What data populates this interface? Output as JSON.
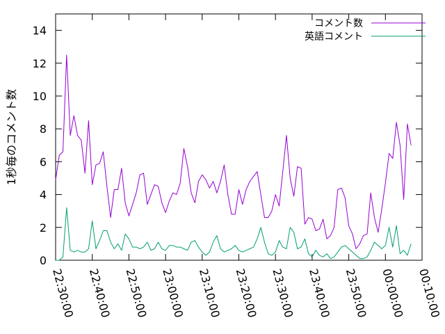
{
  "chart_data": {
    "type": "line",
    "ylabel": "1秒毎のコメント数",
    "ylim": [
      0,
      15
    ],
    "yticks": [
      0,
      2,
      4,
      6,
      8,
      10,
      12,
      14
    ],
    "xlim": [
      "22:30:00",
      "00:10:00"
    ],
    "xticks": [
      "22:30:00",
      "22:40:00",
      "22:50:00",
      "23:00:00",
      "23:10:00",
      "23:20:00",
      "23:30:00",
      "23:40:00",
      "23:50:00",
      "00:00:00",
      "00:10:00"
    ],
    "grid": false,
    "legend_position": "top-right",
    "x_interval_minutes": 1,
    "x_start": "22:30:00",
    "series": [
      {
        "name": "コメント数",
        "color": "#9400d3",
        "values": [
          4.9,
          6.4,
          6.6,
          12.5,
          7.6,
          8.8,
          7.6,
          7.3,
          5.3,
          8.5,
          4.6,
          5.8,
          5.9,
          6.6,
          4.5,
          2.6,
          4.3,
          4.3,
          5.6,
          3.5,
          2.7,
          3.4,
          4.1,
          5.2,
          5.3,
          3.4,
          4.0,
          4.6,
          4.5,
          3.5,
          2.9,
          3.6,
          4.1,
          4.0,
          4.7,
          6.8,
          5.7,
          4.1,
          3.5,
          4.8,
          5.2,
          4.9,
          4.4,
          4.8,
          4.1,
          4.8,
          5.8,
          4.0,
          2.8,
          2.8,
          4.3,
          3.4,
          4.3,
          4.8,
          5.1,
          5.4,
          4.0,
          2.6,
          2.6,
          3.0,
          4.0,
          3.3,
          5.4,
          7.6,
          5.0,
          3.9,
          5.7,
          5.6,
          2.2,
          2.6,
          2.5,
          1.8,
          1.9,
          2.5,
          1.3,
          1.5,
          2.0,
          4.3,
          4.4,
          3.8,
          2.1,
          1.6,
          0.7,
          1.0,
          1.5,
          1.6,
          4.1,
          2.6,
          1.7,
          3.1,
          4.7,
          6.5,
          6.2,
          8.4,
          7.0,
          3.7,
          8.3,
          7.0
        ]
      },
      {
        "name": "英語コメント",
        "color": "#009e73",
        "values": [
          0.0,
          0.0,
          0.2,
          3.2,
          0.6,
          0.5,
          0.6,
          0.5,
          0.5,
          0.7,
          2.4,
          0.7,
          1.2,
          1.8,
          1.8,
          1.1,
          0.7,
          1.0,
          0.6,
          1.6,
          1.3,
          0.8,
          0.8,
          0.7,
          0.8,
          1.1,
          0.6,
          0.7,
          1.1,
          0.7,
          0.6,
          0.9,
          0.9,
          0.8,
          0.8,
          0.7,
          0.6,
          1.1,
          1.2,
          0.8,
          0.5,
          0.3,
          0.5,
          1.1,
          1.5,
          0.7,
          0.5,
          0.6,
          0.7,
          0.9,
          0.6,
          0.5,
          0.6,
          0.7,
          0.8,
          1.3,
          2.0,
          1.1,
          0.4,
          0.3,
          0.5,
          1.2,
          0.8,
          0.7,
          2.0,
          1.7,
          0.7,
          0.8,
          1.3,
          0.4,
          0.2,
          0.6,
          0.3,
          0.2,
          0.4,
          0.1,
          0.2,
          0.5,
          0.8,
          0.9,
          0.7,
          0.5,
          0.3,
          0.1,
          0.1,
          0.2,
          0.6,
          1.1,
          0.9,
          0.7,
          0.9,
          2.0,
          0.8,
          2.1,
          0.4,
          0.6,
          0.3,
          1.0
        ]
      }
    ]
  }
}
